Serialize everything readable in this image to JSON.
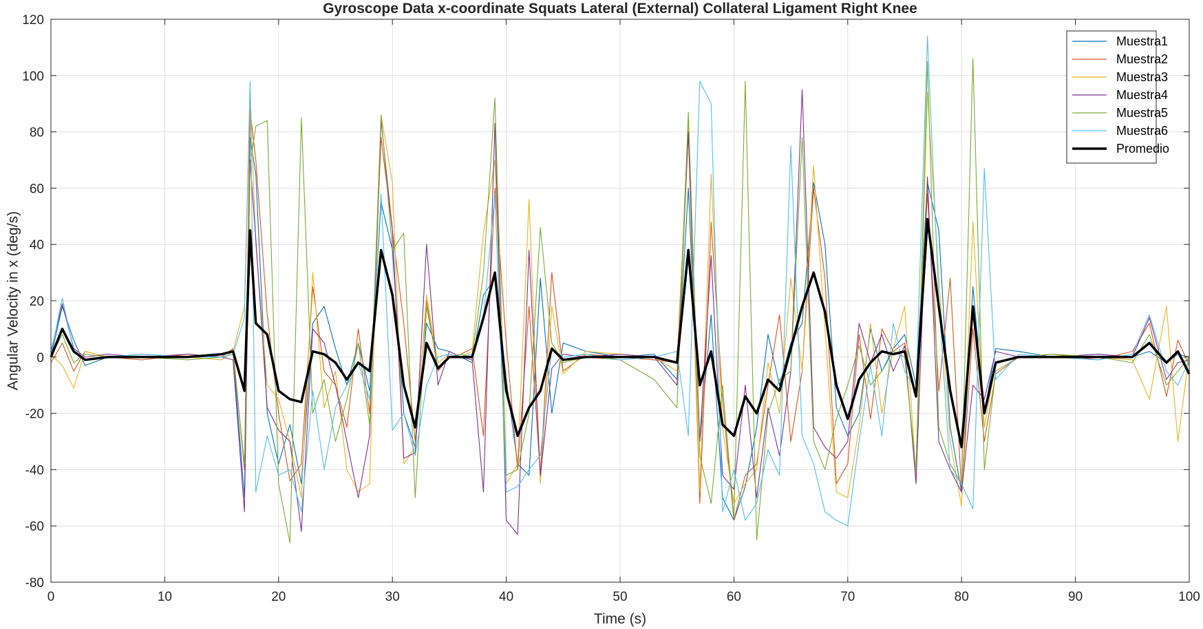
{
  "chart_data": {
    "type": "line",
    "title": "Gyroscope Data x-coordinate Squats Lateral (External) Collateral Ligament Right Knee",
    "xlabel": "Time (s)",
    "ylabel": "Angular Velocity in x (deg/s)",
    "xlim": [
      0,
      100
    ],
    "ylim": [
      -80,
      120
    ],
    "xticks": [
      0,
      10,
      20,
      30,
      40,
      50,
      60,
      70,
      80,
      90,
      100
    ],
    "yticks": [
      -80,
      -60,
      -40,
      -20,
      0,
      20,
      40,
      60,
      80,
      100,
      120
    ],
    "xtick_labels": [
      "0",
      "10",
      "20",
      "30",
      "40",
      "50",
      "60",
      "70",
      "80",
      "90",
      "100"
    ],
    "ytick_labels": [
      "-80",
      "-60",
      "-40",
      "-20",
      "0",
      "20",
      "40",
      "60",
      "80",
      "100",
      "120"
    ],
    "grid": true,
    "legend_position": "top-right",
    "x": [
      0,
      1,
      2,
      3,
      5,
      8,
      12,
      15,
      16,
      17,
      17.5,
      18,
      19,
      20,
      21,
      22,
      23,
      24,
      25,
      26,
      27,
      28,
      29,
      30,
      31,
      32,
      33,
      34,
      35,
      36,
      37,
      38,
      39,
      40,
      41,
      42,
      43,
      44,
      45,
      47,
      50,
      53,
      55,
      56,
      57,
      58,
      59,
      60,
      61,
      62,
      63,
      64,
      65,
      66,
      67,
      68,
      69,
      70,
      71,
      72,
      73,
      74,
      75,
      76,
      77,
      78,
      79,
      80,
      81,
      82,
      83,
      85,
      88,
      92,
      95,
      96.5,
      98,
      99,
      100
    ],
    "series": [
      {
        "name": "Muestra1",
        "color": "#0072BD",
        "values": [
          0,
          18,
          6,
          -3,
          0,
          1,
          0,
          1,
          2,
          -50,
          78,
          65,
          -20,
          -38,
          -24,
          -45,
          12,
          18,
          3,
          -10,
          5,
          -12,
          55,
          38,
          -20,
          -32,
          12,
          3,
          2,
          0,
          -2,
          22,
          28,
          -8,
          -38,
          -42,
          28,
          -20,
          5,
          2,
          0,
          1,
          -8,
          60,
          -30,
          15,
          -50,
          -58,
          -46,
          -25,
          8,
          -10,
          5,
          12,
          62,
          40,
          -18,
          -28,
          -20,
          10,
          -5,
          3,
          8,
          -10,
          62,
          45,
          -25,
          -48,
          25,
          -20,
          3,
          2,
          0,
          1,
          0,
          2,
          -2,
          1,
          0
        ]
      },
      {
        "name": "Muestra2",
        "color": "#D95319",
        "values": [
          -2,
          5,
          -5,
          2,
          0,
          -1,
          1,
          0,
          3,
          -40,
          88,
          70,
          15,
          -20,
          -44,
          -38,
          25,
          -5,
          -10,
          -25,
          10,
          -20,
          78,
          45,
          12,
          -30,
          20,
          -5,
          0,
          1,
          3,
          -28,
          60,
          5,
          -40,
          18,
          -42,
          30,
          -5,
          1,
          0,
          -1,
          -2,
          80,
          -52,
          48,
          -15,
          -58,
          -42,
          -38,
          -10,
          15,
          -30,
          -5,
          60,
          28,
          -45,
          -38,
          8,
          -22,
          10,
          2,
          5,
          -14,
          58,
          -12,
          28,
          -48,
          10,
          -30,
          -6,
          0,
          1,
          -1,
          2,
          12,
          -14,
          6,
          -3
        ]
      },
      {
        "name": "Muestra3",
        "color": "#EDB120",
        "values": [
          1,
          -3,
          -11,
          2,
          0,
          1,
          0,
          -1,
          2,
          18,
          95,
          40,
          -10,
          -15,
          -30,
          -50,
          30,
          -18,
          -5,
          -40,
          -48,
          -45,
          86,
          62,
          -38,
          -32,
          22,
          -2,
          1,
          0,
          2,
          44,
          70,
          -45,
          -38,
          56,
          -45,
          18,
          -6,
          2,
          1,
          0,
          -5,
          85,
          -48,
          65,
          -25,
          -52,
          -45,
          -40,
          -2,
          -20,
          28,
          -5,
          68,
          10,
          -48,
          -50,
          -25,
          12,
          -20,
          3,
          18,
          -42,
          94,
          28,
          -30,
          -53,
          48,
          -25,
          -2,
          0,
          1,
          0,
          -1,
          -15,
          18,
          -30,
          1
        ]
      },
      {
        "name": "Muestra4",
        "color": "#7E2F8E",
        "values": [
          2,
          19,
          3,
          0,
          1,
          0,
          1,
          0,
          -1,
          -55,
          70,
          42,
          -18,
          -26,
          -30,
          -62,
          10,
          5,
          -10,
          -30,
          -50,
          -28,
          84,
          45,
          -36,
          -34,
          40,
          -10,
          2,
          0,
          -1,
          -48,
          83,
          -58,
          -63,
          38,
          -42,
          -4,
          1,
          0,
          1,
          0,
          -10,
          80,
          -30,
          36,
          -42,
          -47,
          -10,
          -50,
          -18,
          -35,
          -5,
          95,
          -25,
          -32,
          -36,
          -30,
          12,
          -2,
          8,
          -5,
          4,
          -45,
          64,
          -30,
          -40,
          -48,
          -10,
          -15,
          2,
          0,
          0,
          1,
          0,
          14,
          -8,
          -2,
          -1
        ]
      },
      {
        "name": "Muestra5",
        "color": "#77AC30",
        "values": [
          0,
          8,
          -2,
          1,
          0,
          0,
          -1,
          0,
          1,
          -38,
          68,
          82,
          84,
          -45,
          -66,
          85,
          -20,
          -8,
          -30,
          -15,
          5,
          -24,
          86,
          38,
          44,
          -50,
          18,
          -4,
          0,
          1,
          0,
          30,
          92,
          -42,
          -40,
          -20,
          46,
          5,
          -2,
          0,
          -1,
          -8,
          -18,
          87,
          -35,
          -52,
          -10,
          -57,
          98,
          -65,
          -20,
          -8,
          -5,
          78,
          -30,
          -40,
          -22,
          -10,
          4,
          -10,
          -5,
          2,
          0,
          -40,
          105,
          -25,
          -38,
          -45,
          106,
          -40,
          -5,
          0,
          1,
          0,
          -2,
          8,
          -10,
          -5,
          0
        ]
      },
      {
        "name": "Muestra6",
        "color": "#4DBEEE",
        "values": [
          1,
          21,
          2,
          -1,
          0,
          1,
          0,
          0,
          1,
          14,
          98,
          -48,
          -28,
          -42,
          -40,
          -55,
          -12,
          -40,
          -18,
          -10,
          -2,
          -15,
          58,
          -26,
          -20,
          -35,
          -10,
          0,
          1,
          0,
          1,
          14,
          58,
          -48,
          -46,
          -40,
          -35,
          3,
          0,
          1,
          -1,
          0,
          2,
          -28,
          98,
          90,
          -55,
          -40,
          -58,
          -52,
          -33,
          -42,
          75,
          -28,
          -38,
          -55,
          -58,
          -60,
          -30,
          -3,
          -28,
          12,
          -5,
          -12,
          114,
          20,
          -40,
          -45,
          -54,
          67,
          -8,
          1,
          0,
          -1,
          1,
          15,
          -5,
          -10,
          -1
        ]
      },
      {
        "name": "Promedio",
        "color": "#000000",
        "values": [
          0,
          10,
          2,
          -1,
          0,
          0,
          0,
          1,
          2,
          -12,
          45,
          12,
          8,
          -12,
          -15,
          -16,
          2,
          1,
          -2,
          -8,
          -2,
          -5,
          38,
          22,
          -10,
          -25,
          5,
          -4,
          0,
          0,
          0,
          14,
          30,
          -12,
          -28,
          -18,
          -12,
          3,
          -1,
          0,
          0,
          0,
          -2,
          38,
          -10,
          2,
          -24,
          -28,
          -14,
          -20,
          -8,
          -12,
          3,
          18,
          30,
          16,
          -10,
          -22,
          -8,
          -2,
          2,
          1,
          2,
          -14,
          49,
          18,
          -12,
          -32,
          18,
          -20,
          -2,
          0,
          0,
          0,
          0,
          5,
          -2,
          2,
          -6
        ]
      }
    ]
  }
}
